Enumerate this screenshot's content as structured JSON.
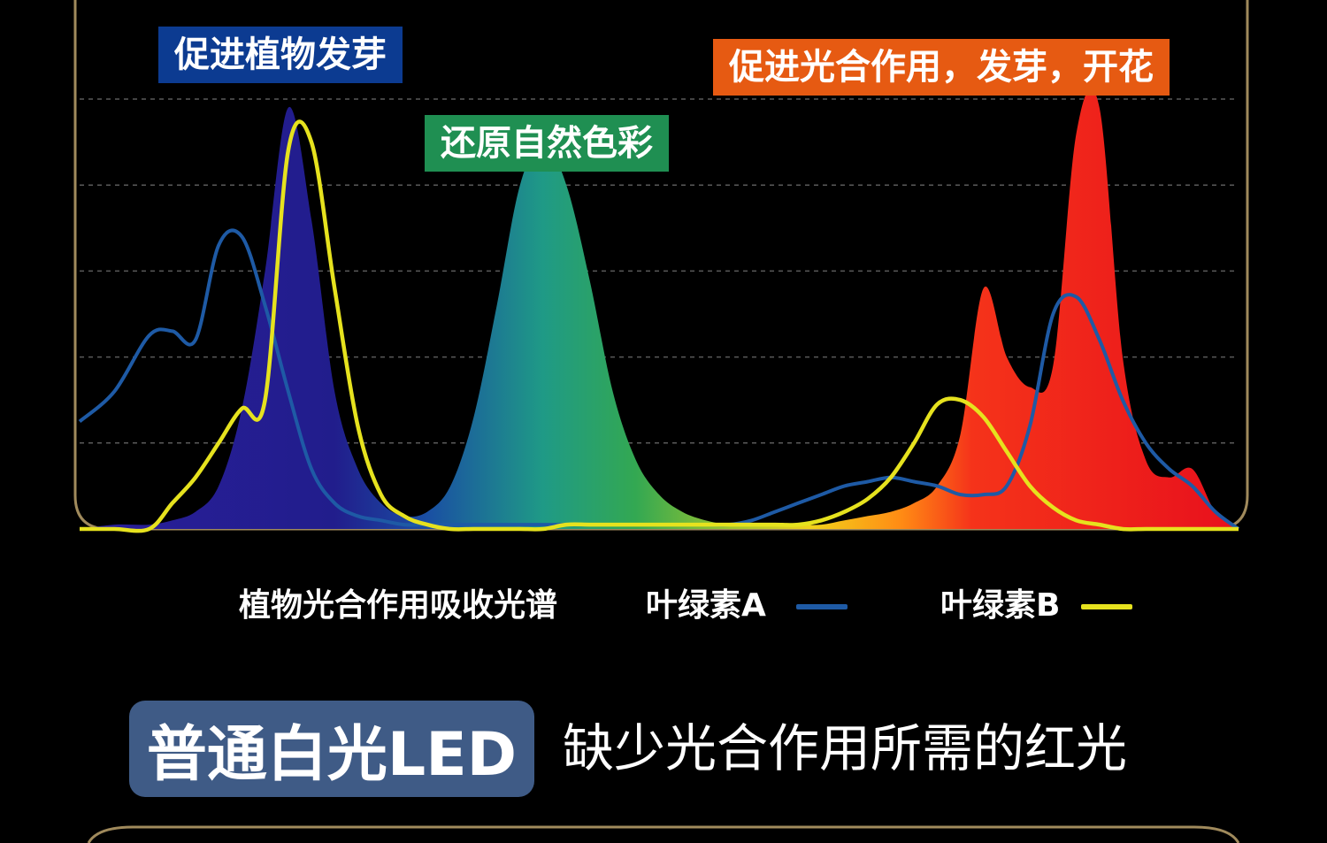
{
  "chart_data": {
    "type": "area",
    "series": [
      {
        "name": "植物光合作用吸收光谱",
        "kind": "filled-spectrum",
        "x": [
          0,
          3,
          6,
          8,
          10,
          12,
          14,
          16,
          18,
          20,
          22,
          24,
          26,
          28,
          30,
          32,
          34,
          36,
          38,
          40,
          42,
          44,
          46,
          48,
          50,
          52,
          54,
          56,
          58,
          60,
          62,
          64,
          66,
          68,
          70,
          72,
          74,
          76,
          78,
          80,
          82,
          84,
          86,
          88,
          90,
          92,
          94,
          96,
          98,
          100
        ],
        "y": [
          0,
          1,
          1,
          2,
          4,
          10,
          28,
          60,
          98,
          72,
          32,
          14,
          6,
          3,
          4,
          10,
          26,
          52,
          80,
          90,
          80,
          58,
          32,
          16,
          8,
          4,
          2,
          1,
          1,
          1,
          1,
          1,
          2,
          3,
          4,
          6,
          10,
          22,
          56,
          40,
          33,
          38,
          92,
          98,
          40,
          16,
          12,
          14,
          4,
          0
        ]
      },
      {
        "name": "叶绿素A",
        "kind": "line",
        "x": [
          0,
          3,
          6,
          8,
          10,
          12,
          14,
          16,
          18,
          20,
          22,
          24,
          26,
          28,
          30,
          32,
          34,
          36,
          38,
          40,
          42,
          44,
          46,
          48,
          50,
          52,
          54,
          56,
          58,
          60,
          62,
          64,
          66,
          68,
          70,
          72,
          74,
          76,
          78,
          80,
          82,
          84,
          86,
          88,
          90,
          92,
          94,
          96,
          98,
          100
        ],
        "y": [
          25,
          32,
          45,
          46,
          44,
          66,
          68,
          52,
          32,
          14,
          6,
          3,
          2,
          1,
          1,
          1,
          1,
          1,
          1,
          1,
          1,
          1,
          1,
          1,
          1,
          1,
          1,
          1,
          2,
          4,
          6,
          8,
          10,
          11,
          12,
          11,
          10,
          8,
          8,
          10,
          24,
          50,
          54,
          44,
          30,
          20,
          14,
          10,
          4,
          0
        ]
      },
      {
        "name": "叶绿素B",
        "kind": "line",
        "x": [
          0,
          3,
          6,
          8,
          10,
          12,
          14,
          16,
          18,
          20,
          22,
          24,
          26,
          28,
          30,
          32,
          34,
          36,
          38,
          40,
          42,
          44,
          46,
          48,
          50,
          52,
          54,
          56,
          58,
          60,
          62,
          64,
          66,
          68,
          70,
          72,
          74,
          76,
          78,
          80,
          82,
          84,
          86,
          88,
          90,
          92,
          94,
          96,
          98,
          100
        ],
        "y": [
          0,
          0,
          0,
          6,
          12,
          20,
          28,
          30,
          88,
          90,
          56,
          24,
          8,
          3,
          1,
          0,
          0,
          0,
          0,
          0,
          1,
          1,
          1,
          1,
          1,
          1,
          1,
          1,
          1,
          1,
          1,
          2,
          4,
          7,
          12,
          20,
          29,
          30,
          26,
          18,
          10,
          5,
          2,
          1,
          0,
          0,
          0,
          0,
          0,
          0
        ]
      }
    ],
    "xlim": [
      0,
      100
    ],
    "ylim": [
      0,
      100
    ],
    "grid": true,
    "annotations": [
      {
        "text": "促进植物发芽",
        "color": "#0c3b91"
      },
      {
        "text": "还原自然色彩",
        "color": "#1f8f52"
      },
      {
        "text": "促进光合作用，发芽，开花",
        "color": "#e65a12"
      }
    ]
  },
  "legend": {
    "spectrum_label": "植物光合作用吸收光谱",
    "chlorophyll_a_label": "叶绿素A",
    "chlorophyll_b_label": "叶绿素B",
    "chlorophyll_a_color": "#1e5aa5",
    "chlorophyll_b_color": "#e6e21e"
  },
  "led_section": {
    "badge_label": "普通白光LED",
    "badge_color": "#3f5b86",
    "caption": "缺少光合作用所需的红光"
  },
  "colors": {
    "frame": "#a08a5c",
    "grid": "#5a5a5a"
  }
}
